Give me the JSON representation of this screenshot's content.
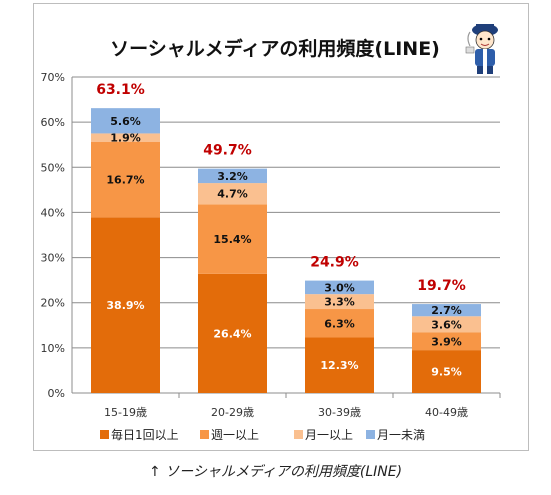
{
  "title": "ソーシャルメディアの利用頻度(LINE)",
  "caption": "↑ ソーシャルメディアの利用頻度(LINE)",
  "mascot_icon": "mascot-character-icon",
  "chart_data": {
    "type": "bar",
    "stacked": true,
    "categories": [
      "15-19歳",
      "20-29歳",
      "30-39歳",
      "40-49歳"
    ],
    "series": [
      {
        "name": "毎日1回以上",
        "color": "#e36c0a",
        "values": [
          38.9,
          26.4,
          12.3,
          9.5
        ],
        "labels": [
          "38.9%",
          "26.4%",
          "12.3%",
          "9.5%"
        ]
      },
      {
        "name": "週一以上",
        "color": "#f79646",
        "values": [
          16.7,
          15.4,
          6.3,
          3.9
        ],
        "labels": [
          "16.7%",
          "15.4%",
          "6.3%",
          "3.9%"
        ]
      },
      {
        "name": "月一以上",
        "color": "#fac090",
        "values": [
          1.9,
          4.7,
          3.3,
          3.6
        ],
        "labels": [
          "1.9%",
          "4.7%",
          "3.3%",
          "3.6%"
        ]
      },
      {
        "name": "月一未満",
        "color": "#8db3e2",
        "values": [
          5.6,
          3.2,
          3.0,
          2.7
        ],
        "labels": [
          "5.6%",
          "3.2%",
          "3.0%",
          "2.7%"
        ]
      }
    ],
    "totals": [
      63.1,
      49.7,
      24.9,
      19.7
    ],
    "total_labels": [
      "63.1%",
      "49.7%",
      "24.9%",
      "19.7%"
    ],
    "total_color": "#c00000",
    "yticks": [
      "0%",
      "10%",
      "20%",
      "30%",
      "40%",
      "50%",
      "60%",
      "70%"
    ],
    "ylim": [
      0,
      70
    ],
    "grid": true,
    "legend_position": "bottom"
  }
}
